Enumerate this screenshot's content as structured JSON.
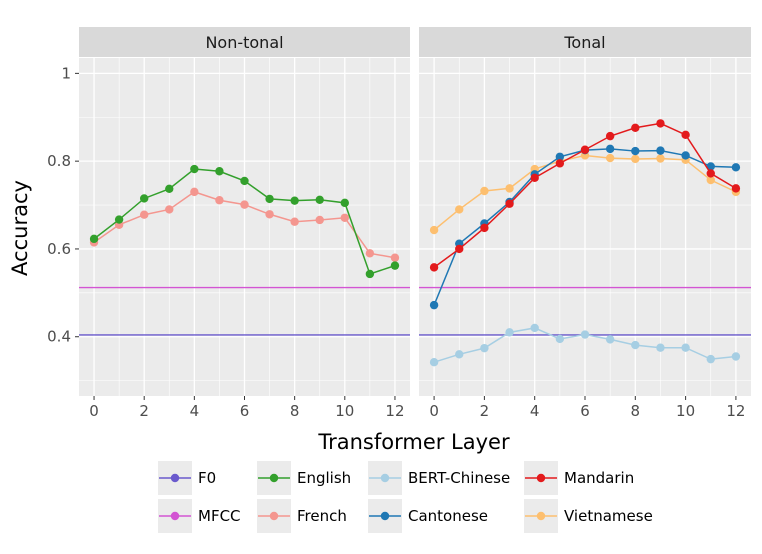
{
  "chart_data": {
    "type": "line",
    "xlabel": "Transformer Layer",
    "ylabel": "Accuracy",
    "xlim": [
      -0.6,
      12.6
    ],
    "ylim": [
      0.265,
      1.035
    ],
    "x_ticks": [
      0,
      2,
      4,
      6,
      8,
      10,
      12
    ],
    "x_tick_labels": [
      "0",
      "2",
      "4",
      "6",
      "8",
      "10",
      "12"
    ],
    "y_ticks": [
      0.4,
      0.6,
      0.8,
      1.0
    ],
    "y_tick_labels": [
      "0.4",
      "0.6",
      "0.8",
      "1"
    ],
    "x": [
      0,
      1,
      2,
      3,
      4,
      5,
      6,
      7,
      8,
      9,
      10,
      11,
      12
    ],
    "reference_lines": [
      {
        "name": "F0",
        "color": "#6a5acd",
        "value": 0.404
      },
      {
        "name": "MFCC",
        "color": "#d354d3",
        "value": 0.512
      }
    ],
    "panels": [
      {
        "title": "Non-tonal",
        "series": [
          {
            "name": "French",
            "color": "#f4968f",
            "values": [
              0.615,
              0.655,
              0.678,
              0.69,
              0.73,
              0.711,
              0.701,
              0.679,
              0.662,
              0.666,
              0.671,
              0.59,
              0.58
            ]
          },
          {
            "name": "English",
            "color": "#33a02c",
            "values": [
              0.623,
              0.667,
              0.715,
              0.737,
              0.782,
              0.777,
              0.755,
              0.714,
              0.71,
              0.712,
              0.705,
              0.543,
              0.562
            ]
          }
        ]
      },
      {
        "title": "Tonal",
        "series": [
          {
            "name": "BERT-Chinese",
            "color": "#a6cee3",
            "values": [
              0.342,
              0.36,
              0.374,
              0.41,
              0.42,
              0.395,
              0.405,
              0.394,
              0.381,
              0.375,
              0.375,
              0.349,
              0.355
            ]
          },
          {
            "name": "Vietnamese",
            "color": "#fdbf6f",
            "values": [
              0.643,
              0.69,
              0.732,
              0.738,
              0.782,
              0.8,
              0.813,
              0.807,
              0.805,
              0.806,
              0.803,
              0.757,
              0.73
            ]
          },
          {
            "name": "Cantonese",
            "color": "#1f78b4",
            "values": [
              0.472,
              0.612,
              0.658,
              0.707,
              0.77,
              0.81,
              0.825,
              0.828,
              0.823,
              0.824,
              0.813,
              0.788,
              0.786
            ]
          },
          {
            "name": "Mandarin",
            "color": "#e31a1c",
            "values": [
              0.558,
              0.6,
              0.648,
              0.703,
              0.762,
              0.795,
              0.826,
              0.857,
              0.876,
              0.886,
              0.86,
              0.772,
              0.738
            ]
          }
        ]
      }
    ],
    "legend": {
      "placement": "bottom",
      "items": [
        {
          "name": "F0",
          "color": "#6a5acd"
        },
        {
          "name": "MFCC",
          "color": "#d354d3"
        },
        {
          "name": "English",
          "color": "#33a02c"
        },
        {
          "name": "French",
          "color": "#f4968f"
        },
        {
          "name": "BERT-Chinese",
          "color": "#a6cee3"
        },
        {
          "name": "Cantonese",
          "color": "#1f78b4"
        },
        {
          "name": "Mandarin",
          "color": "#e31a1c"
        },
        {
          "name": "Vietnamese",
          "color": "#fdbf6f"
        }
      ]
    }
  }
}
